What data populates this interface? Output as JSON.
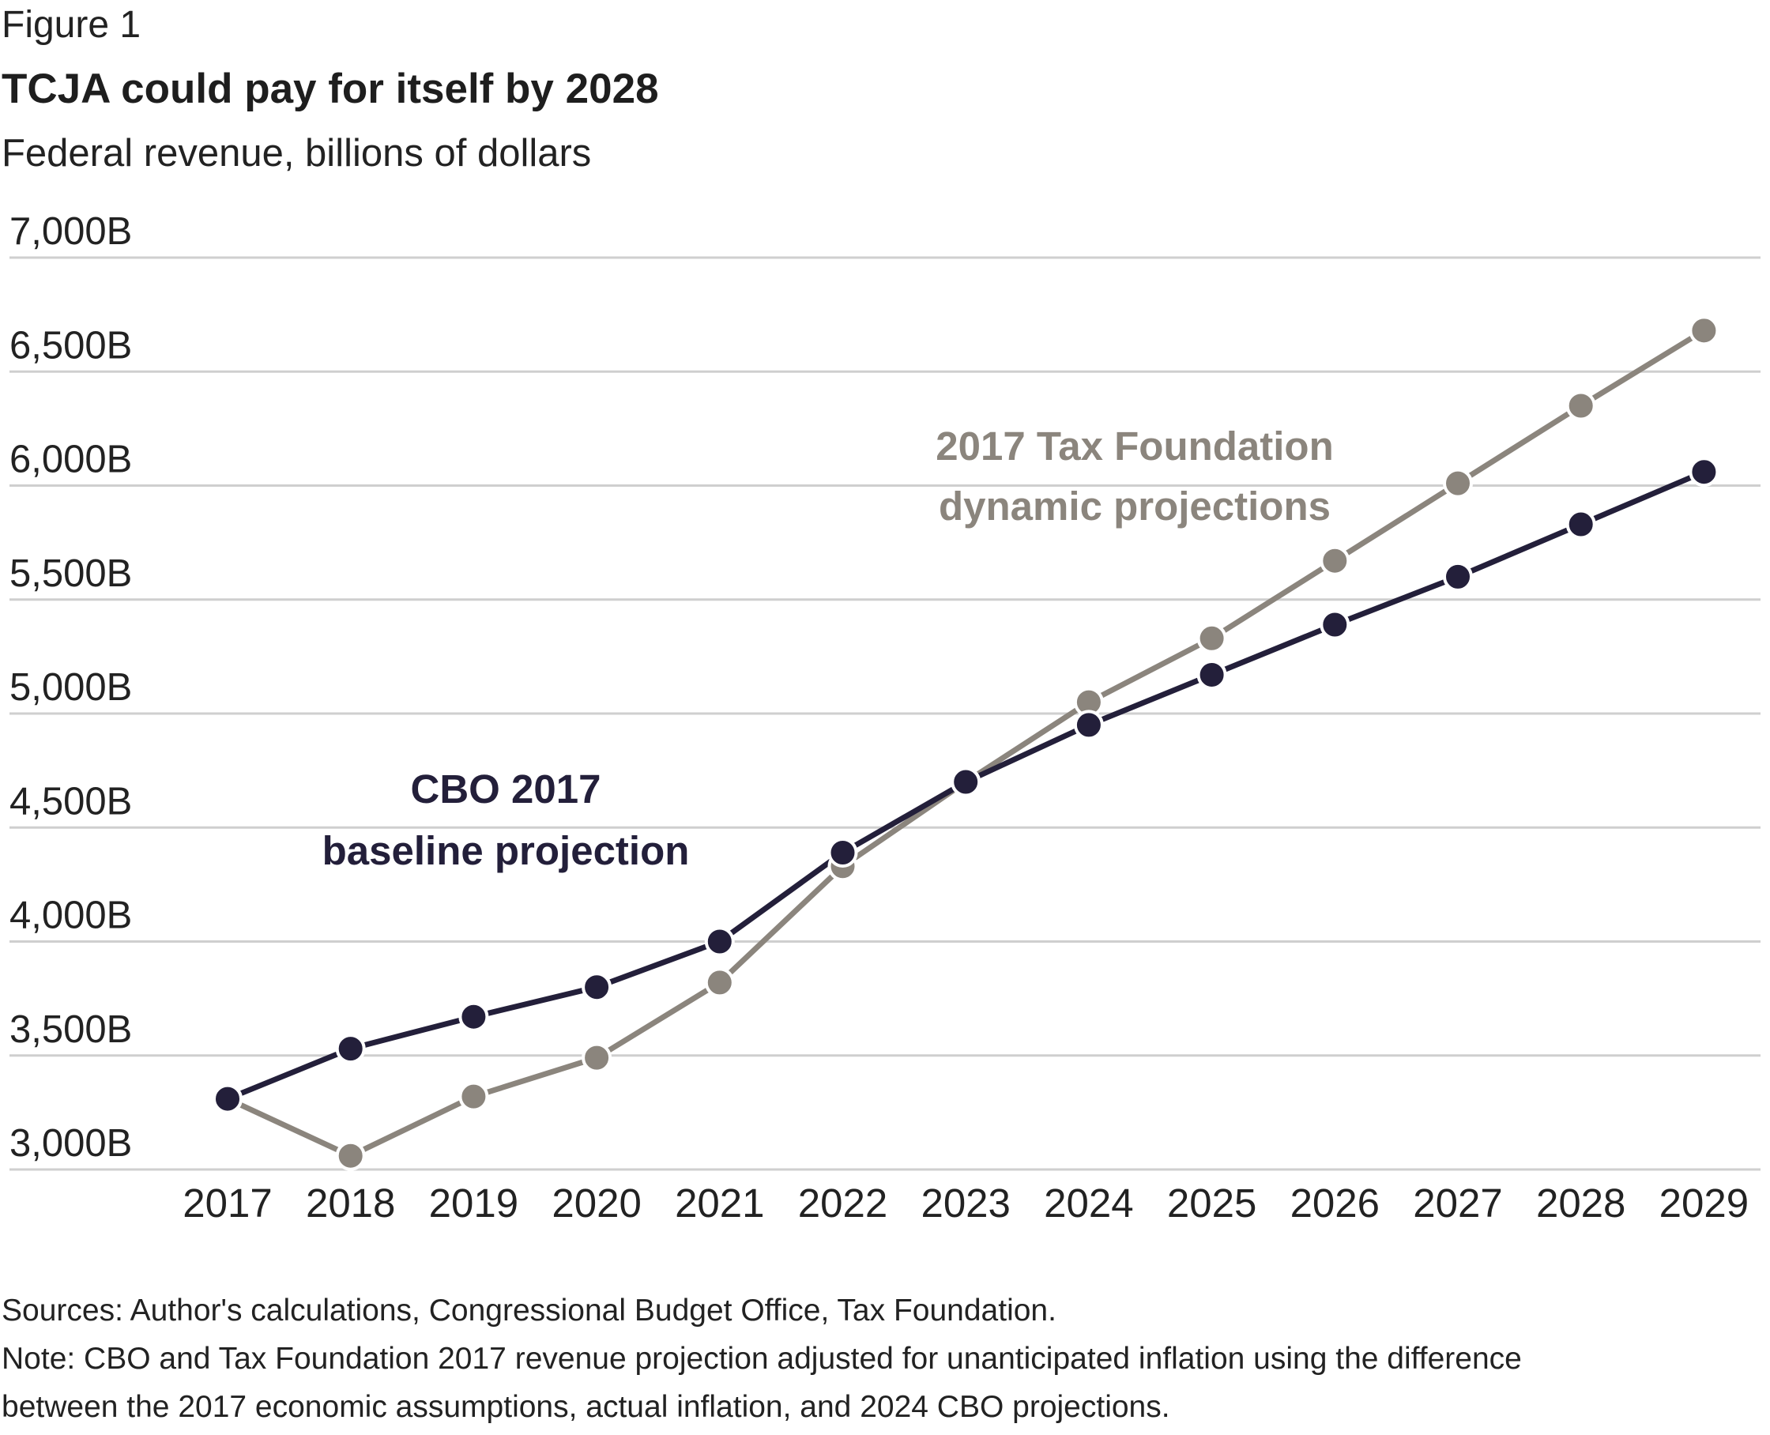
{
  "figure_label": "Figure 1",
  "chart_data": {
    "type": "line",
    "title": "TCJA could pay for itself by 2028",
    "subtitle": "Federal revenue, billions of dollars",
    "xlabel": "",
    "ylabel": "",
    "ylim": [
      3000,
      7000
    ],
    "y_ticks": [
      3000,
      3500,
      4000,
      4500,
      5000,
      5500,
      6000,
      6500,
      7000
    ],
    "y_tick_labels": [
      "3,000B",
      "3,500B",
      "4,000B",
      "4,500B",
      "5,000B",
      "5,500B",
      "6,000B",
      "6,500B",
      "7,000B"
    ],
    "x": [
      "2017",
      "2018",
      "2019",
      "2020",
      "2021",
      "2022",
      "2023",
      "2024",
      "2025",
      "2026",
      "2027",
      "2028",
      "2029"
    ],
    "grid": true,
    "series": [
      {
        "name": "CBO 2017 baseline projection",
        "label_lines": [
          "CBO 2017",
          "baseline projection"
        ],
        "color": "#231f3a",
        "values": [
          3310,
          3530,
          3670,
          3800,
          4000,
          4390,
          4700,
          4950,
          5170,
          5390,
          5600,
          5830,
          6060
        ]
      },
      {
        "name": "2017 Tax Foundation dynamic projections",
        "label_lines": [
          "2017 Tax Foundation",
          "dynamic projections"
        ],
        "color": "#8b857d",
        "values": [
          3310,
          3060,
          3320,
          3490,
          3820,
          4330,
          4700,
          5050,
          5330,
          5670,
          6010,
          6350,
          6680
        ]
      }
    ]
  },
  "sources": {
    "line1": "Sources: Author's calculations, Congressional Budget Office, Tax Foundation.",
    "line2": "Note: CBO and Tax Foundation 2017 revenue projection adjusted for unanticipated inflation using the difference",
    "line3": "between the 2017 economic assumptions, actual inflation, and 2024 CBO projections."
  }
}
